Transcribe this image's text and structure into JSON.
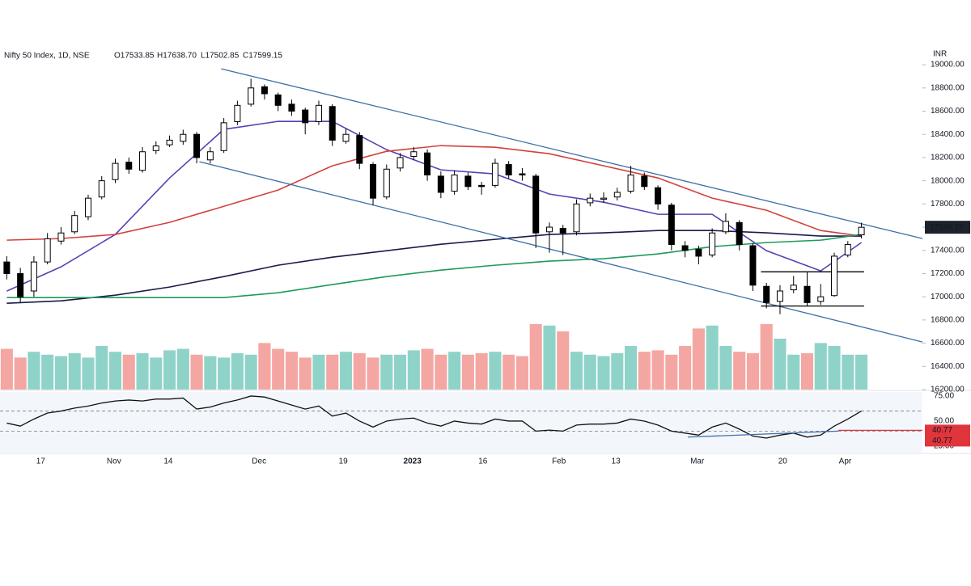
{
  "chart_data": {
    "type": "candlestick",
    "title": "Nifty 50 Index, 1D, NSE",
    "ohlc_labels": [
      "O17533.85",
      "H17638.70",
      "L17502.85",
      "C17599.15"
    ],
    "currency": "INR",
    "xlim": [
      -0.5,
      67.5
    ],
    "xticks": [
      {
        "value": 2.5,
        "label": "17"
      },
      {
        "value": 7.9,
        "label": "Nov"
      },
      {
        "value": 11.9,
        "label": "14"
      },
      {
        "value": 18.6,
        "label": "Dec"
      },
      {
        "value": 24.8,
        "label": "19"
      },
      {
        "value": 29.9,
        "label": "2023"
      },
      {
        "value": 35.1,
        "label": "16"
      },
      {
        "value": 40.7,
        "label": "Feb"
      },
      {
        "value": 44.9,
        "label": "13"
      },
      {
        "value": 50.9,
        "label": "Mar"
      },
      {
        "value": 57.2,
        "label": "20"
      },
      {
        "value": 61.8,
        "label": "Apr"
      }
    ],
    "ylim": [
      16200,
      19140
    ],
    "yticks": [
      {
        "value": 16200,
        "label": "16200.00"
      },
      {
        "value": 16400,
        "label": "16400.00"
      },
      {
        "value": 16600,
        "label": "16600.00"
      },
      {
        "value": 16800,
        "label": "16800.00"
      },
      {
        "value": 17000,
        "label": "17000.00"
      },
      {
        "value": 17200,
        "label": "17200.00"
      },
      {
        "value": 17400,
        "label": "17400.00"
      },
      {
        "value": 17600,
        "label": "17600.00"
      },
      {
        "value": 17800,
        "label": "17800.00"
      },
      {
        "value": 18000,
        "label": "18000.00"
      },
      {
        "value": 18200,
        "label": "18200.00"
      },
      {
        "value": 18400,
        "label": "18400.00"
      },
      {
        "value": 18600,
        "label": "18600.00"
      },
      {
        "value": 18800,
        "label": "18800.00"
      },
      {
        "value": 19000,
        "label": "19000.00"
      }
    ],
    "up_color": "#ffffff",
    "down_color": "#000000",
    "candles": [
      [
        17300,
        17350,
        17150,
        17200
      ],
      [
        17200,
        17250,
        16950,
        17000
      ],
      [
        17050,
        17350,
        17000,
        17300
      ],
      [
        17300,
        17550,
        17280,
        17500
      ],
      [
        17480,
        17600,
        17450,
        17550
      ],
      [
        17560,
        17740,
        17540,
        17700
      ],
      [
        17690,
        17880,
        17660,
        17850
      ],
      [
        17860,
        18040,
        17840,
        18000
      ],
      [
        18010,
        18190,
        17980,
        18150
      ],
      [
        18160,
        18200,
        18060,
        18100
      ],
      [
        18090,
        18290,
        18070,
        18250
      ],
      [
        18260,
        18340,
        18230,
        18300
      ],
      [
        18310,
        18390,
        18290,
        18350
      ],
      [
        18340,
        18440,
        18310,
        18400
      ],
      [
        18400,
        18420,
        18150,
        18200
      ],
      [
        18180,
        18290,
        18150,
        18250
      ],
      [
        18260,
        18540,
        18240,
        18500
      ],
      [
        18510,
        18690,
        18480,
        18650
      ],
      [
        18660,
        18880,
        18640,
        18800
      ],
      [
        18810,
        18830,
        18700,
        18750
      ],
      [
        18740,
        18760,
        18600,
        18650
      ],
      [
        18660,
        18700,
        18560,
        18600
      ],
      [
        18610,
        18630,
        18400,
        18500
      ],
      [
        18510,
        18690,
        18480,
        18650
      ],
      [
        18640,
        18660,
        18300,
        18350
      ],
      [
        18340,
        18450,
        18320,
        18400
      ],
      [
        18390,
        18420,
        18100,
        18150
      ],
      [
        18140,
        18160,
        17790,
        17850
      ],
      [
        17860,
        18140,
        17840,
        18100
      ],
      [
        18110,
        18240,
        18080,
        18200
      ],
      [
        18210,
        18290,
        18180,
        18250
      ],
      [
        18240,
        18270,
        18000,
        18050
      ],
      [
        18040,
        18080,
        17850,
        17900
      ],
      [
        17910,
        18090,
        17880,
        18050
      ],
      [
        18040,
        18070,
        17920,
        17950
      ],
      [
        17960,
        17990,
        17880,
        17950
      ],
      [
        17960,
        18190,
        17940,
        18150
      ],
      [
        18140,
        18170,
        18020,
        18050
      ],
      [
        18060,
        18110,
        18000,
        18050
      ],
      [
        18040,
        18060,
        17420,
        17550
      ],
      [
        17560,
        17640,
        17380,
        17600
      ],
      [
        17590,
        17620,
        17360,
        17550
      ],
      [
        17560,
        17840,
        17530,
        17800
      ],
      [
        17810,
        17890,
        17780,
        17850
      ],
      [
        17840,
        17900,
        17810,
        17850
      ],
      [
        17860,
        17940,
        17830,
        17900
      ],
      [
        17910,
        18130,
        17890,
        18050
      ],
      [
        18040,
        18070,
        17920,
        17950
      ],
      [
        17940,
        17960,
        17750,
        17800
      ],
      [
        17790,
        17810,
        17400,
        17450
      ],
      [
        17440,
        17480,
        17340,
        17400
      ],
      [
        17410,
        17440,
        17280,
        17350
      ],
      [
        17360,
        17590,
        17340,
        17550
      ],
      [
        17560,
        17720,
        17540,
        17650
      ],
      [
        17640,
        17660,
        17400,
        17450
      ],
      [
        17440,
        17460,
        17050,
        17100
      ],
      [
        17090,
        17120,
        16900,
        16950
      ],
      [
        16960,
        17100,
        16850,
        17050
      ],
      [
        17060,
        17180,
        17030,
        17100
      ],
      [
        17090,
        17210,
        16920,
        16950
      ],
      [
        16960,
        17110,
        16930,
        17000
      ],
      [
        17010,
        17380,
        17000,
        17350
      ],
      [
        17360,
        17480,
        17340,
        17450
      ],
      [
        17533.85,
        17638.7,
        17502.85,
        17599.15
      ]
    ],
    "volume_up_color": "#8fd3c8",
    "volume_down_color": "#f4a6a2",
    "volume_lim": [
      0,
      100
    ],
    "volume": [
      28,
      22,
      26,
      24,
      23,
      25,
      22,
      30,
      26,
      24,
      25,
      22,
      27,
      28,
      24,
      23,
      22,
      25,
      24,
      32,
      28,
      26,
      22,
      24,
      24,
      26,
      25,
      22,
      24,
      24,
      27,
      28,
      24,
      26,
      24,
      25,
      26,
      24,
      23,
      45,
      44,
      40,
      26,
      24,
      23,
      25,
      30,
      26,
      27,
      24,
      30,
      42,
      44,
      30,
      26,
      25,
      45,
      35,
      24,
      25,
      32,
      30,
      24,
      24
    ],
    "moving_averages": [
      {
        "color": "#5b3fb5",
        "x": [
          0,
          4,
          8,
          12,
          16,
          20,
          24,
          28,
          32,
          36,
          40,
          44,
          48,
          52,
          56,
          60,
          63
        ],
        "values": [
          17049,
          17258,
          17537,
          18024,
          18443,
          18512,
          18512,
          18268,
          18094,
          18059,
          17885,
          17815,
          17711,
          17711,
          17397,
          17223,
          17467
        ]
      },
      {
        "color": "#d2413b",
        "x": [
          0,
          4,
          8,
          12,
          16,
          20,
          24,
          28,
          32,
          36,
          40,
          44,
          48,
          52,
          56,
          60,
          63
        ],
        "values": [
          17488,
          17502,
          17537,
          17641,
          17780,
          17920,
          18129,
          18254,
          18303,
          18289,
          18233,
          18129,
          18024,
          17850,
          17746,
          17571,
          17523
        ]
      },
      {
        "color": "#1a1a4a",
        "x": [
          0,
          4,
          8,
          12,
          16,
          20,
          24,
          28,
          32,
          36,
          40,
          44,
          48,
          52,
          56,
          60,
          63
        ],
        "values": [
          16944,
          16965,
          17014,
          17084,
          17174,
          17272,
          17341,
          17397,
          17453,
          17495,
          17537,
          17551,
          17571,
          17571,
          17551,
          17523,
          17523
        ]
      },
      {
        "color": "#1e9a5a",
        "x": [
          0,
          4,
          8,
          12,
          16,
          20,
          24,
          28,
          32,
          36,
          40,
          44,
          48,
          52,
          56,
          60,
          63
        ],
        "values": [
          16993,
          16993,
          16993,
          16993,
          16993,
          17035,
          17105,
          17174,
          17230,
          17272,
          17307,
          17328,
          17369,
          17432,
          17467,
          17488,
          17537
        ]
      }
    ],
    "trendlines": [
      {
        "color": "#3d6fa8",
        "x": [
          15.8,
          67.5
        ],
        "values": [
          18965,
          17502
        ]
      },
      {
        "color": "#3d6fa8",
        "x": [
          14.2,
          67.5
        ],
        "values": [
          18164,
          16610
        ]
      },
      {
        "color": "#000000",
        "x": [
          55.6,
          63.2
        ],
        "values": [
          17215,
          17215
        ]
      },
      {
        "color": "#000000",
        "x": [
          55.6,
          63.2
        ],
        "values": [
          16920,
          16920
        ]
      }
    ],
    "last_price": 17599.15,
    "rsi": {
      "color": "#111111",
      "ylim": [
        18.5,
        79
      ],
      "yticks": [
        {
          "value": 75,
          "label": "75.00"
        },
        {
          "value": 50,
          "label": "50.00"
        },
        {
          "value": 25,
          "label": "25.00"
        }
      ],
      "bands": [
        60,
        40
      ],
      "values": [
        48,
        45,
        52,
        58,
        60,
        63,
        65,
        68,
        70,
        71,
        70,
        72,
        72,
        73,
        62,
        64,
        68,
        71,
        75,
        74,
        70,
        66,
        62,
        65,
        55,
        58,
        50,
        44,
        50,
        52,
        53,
        48,
        45,
        50,
        48,
        47,
        52,
        50,
        50,
        40,
        41,
        40,
        46,
        47,
        47,
        48,
        52,
        50,
        46,
        40,
        38,
        36,
        44,
        48,
        42,
        35,
        33,
        36,
        38,
        34,
        36,
        45,
        52,
        60
      ],
      "trendline": {
        "color": "#3d6fa8",
        "x": [
          50.2,
          61.3
        ],
        "values": [
          34,
          40
        ]
      },
      "levels": [
        40.77,
        40.77
      ],
      "level_color": "#e0353b"
    }
  }
}
